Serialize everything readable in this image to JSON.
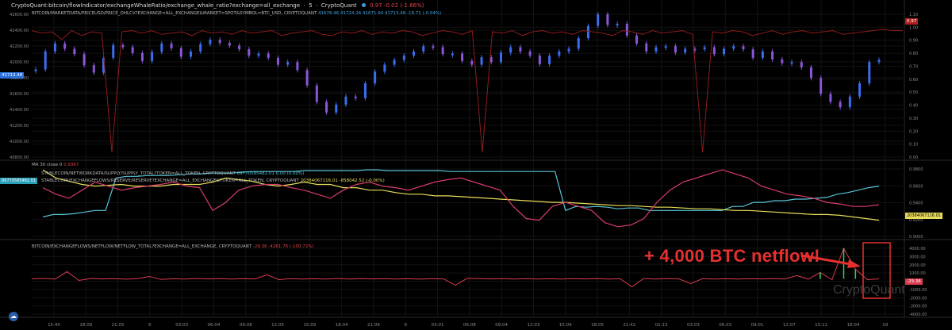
{
  "header": {
    "title": "CryptoQuant:bitcoin/flowIndicator/exchangeWhaleRatio/exchange_whale_ratio?exchange=all_exchange",
    "interval": "5",
    "source": "CryptoQuant",
    "value": "0.97",
    "change": "-0.02 (-1.66%)"
  },
  "panes": {
    "price": {
      "legend": "BITCOIN/MARKETDATA/PRICEUSD/PRICE_OHLCV?EXCHANGE=ALL_EXCHANGE&MARKET=SPOT&SYMBOL=BTC_USD, CRYPTOQUANT",
      "ohlc": "41678.46 41724.26 41671.94 41713.48 -18.71 (-0.04%)",
      "price_tag": "41713.48",
      "ratio_tag": "0.97"
    },
    "stable": {
      "indicator": "MA 30 close 0",
      "indicator_value": "0.9367",
      "legend1": "STABLECOIN/NETWORKDATA/SUPPLY/SUPPLY_TOTAL?TOKEN=ALL_TOKEN, CRYPTOQUANT",
      "legend1_value": "89770585482.01 0.00 (0.00%)",
      "legend2": "STABLECOIN/EXCHANGEFLOWS/RESERVE/RESERVE?EXCHANGE=ALL_EXCHANGE&TOKEN=ALL_TOKEN, CRYPTOQUANT",
      "legend2_value": "20384067116.01 -858042.52 (-0.00%)",
      "supply_tag": "89770585482.01",
      "reserve_tag": "20384067116.01"
    },
    "netflow": {
      "legend": "BITCOIN/EXCHANGEFLOWS/NETFLOW/NETFLOW_TOTAL?EXCHANGE=ALL_EXCHANGE, CRYPTOQUANT",
      "legend_value": "-29.36 -4261.76 (-100.72%)",
      "tag": "-29.36"
    }
  },
  "annotation": "+ 4,000 BTC netflow!",
  "watermark": "CryptoQuant",
  "colors": {
    "background": "#000000",
    "candle_up": "#3b6df0",
    "candle_down": "#8a56d8",
    "whale_ratio": "#8c1c1c",
    "supply_line": "#59c4d6",
    "reserve_line": "#e8dc5a",
    "ma_line": "#d83c6c",
    "netflow_line": "#d83c50",
    "netflow_spike": "#3cd060",
    "annotation": "#e63030"
  },
  "chart_data": [
    {
      "type": "line",
      "pane": "price",
      "series": [
        {
          "name": "BITCOIN/MARKETDATA/PRICEUSD/PRICE_OHLCV?EXCHANGE=ALL_EXCHANGE&MARKET=SPOT&SYMBOL=BTC_USD",
          "style": "candles",
          "values": [
            41560,
            41900,
            42050,
            41950,
            41850,
            41640,
            41500,
            41780,
            42020,
            41980,
            41870,
            41720,
            41890,
            42050,
            41960,
            41800,
            41900,
            42040,
            42120,
            42060,
            42010,
            41940,
            41820,
            41860,
            41780,
            41650,
            41700,
            41550,
            41260,
            40950,
            40750,
            40900,
            41050,
            41020,
            41300,
            41520,
            41650,
            41740,
            41820,
            41900,
            42000,
            41980,
            41850,
            41860,
            41720,
            41650,
            41790,
            41700,
            41880,
            41980,
            41900,
            41820,
            41660,
            41820,
            41900,
            41950,
            42150,
            42380,
            42600,
            42400,
            42420,
            42200,
            42050,
            41900,
            41980,
            42000,
            41880,
            41950,
            41940,
            41980,
            41850,
            41950,
            42000,
            41940,
            41780,
            41900,
            41750,
            41680,
            41700,
            41600,
            41400,
            41100,
            40950,
            40850,
            41050,
            41300,
            41700,
            41740
          ]
        },
        {
          "name": "exchange_whale_ratio",
          "values": [
            0.97,
            0.95,
            0.96,
            0.9,
            0.97,
            0.93,
            0.96,
            0.95,
            0.0,
            0.96,
            0.97,
            0.95,
            0.97,
            0.94,
            0.95,
            0.96,
            0.93,
            0.97,
            0.95,
            0.96,
            0.94,
            0.97,
            0.95,
            0.96,
            0.97,
            0.93,
            0.95,
            0.96,
            0.97,
            0.94,
            0.93,
            0.96,
            0.95,
            0.97,
            0.94,
            0.96,
            0.95,
            0.97,
            0.96,
            0.93,
            0.95,
            0.97,
            0.96,
            0.94,
            0.97,
            0.0,
            0.96,
            0.95,
            0.97,
            0.93,
            0.96,
            0.97,
            0.95,
            0.96,
            0.94,
            0.97,
            0.96,
            0.95,
            0.93,
            0.97,
            0.96,
            0.94,
            0.97,
            0.95,
            0.96,
            0.97,
            0.94,
            0.0,
            0.96,
            0.95,
            0.97,
            0.96,
            0.93,
            0.95,
            0.97,
            0.94,
            0.96,
            0.97,
            0.95,
            0.96,
            0.97,
            0.94,
            0.95,
            0.96,
            0.97,
            0.98,
            0.97,
            0.97
          ]
        }
      ],
      "ylim": [
        40000,
        42600
      ],
      "y2lim": [
        0.0,
        1.1
      ],
      "yticks": [
        "42600.00",
        "42400.00",
        "42200.00",
        "42000.00",
        "41800.00",
        "41600.00",
        "41400.00",
        "41200.00",
        "41000.00",
        "40800.00"
      ],
      "y2ticks": [
        "1.10",
        "1.00",
        "0.90",
        "0.80",
        "0.70",
        "0.60",
        "0.50",
        "0.40",
        "0.30",
        "0.20",
        "0.10",
        "0.00"
      ]
    },
    {
      "type": "line",
      "pane": "stablecoin",
      "series": [
        {
          "name": "STABLECOIN/NETWORKDATA/SUPPLY/SUPPLY_TOTAL?TOKEN=ALL_TOKEN",
          "values": [
            0.922,
            0.925,
            0.925,
            0.926,
            0.928,
            0.93,
            0.93,
            0.97,
            0.972,
            0.972,
            0.973,
            0.973,
            0.973,
            0.974,
            0.975,
            0.975,
            0.976,
            0.976,
            0.976,
            0.977,
            0.978,
            0.978,
            0.978,
            0.978,
            0.978,
            0.979,
            0.979,
            0.979,
            0.979,
            0.979,
            0.979,
            0.98,
            0.98,
            0.979,
            0.979,
            0.979,
            0.979,
            0.979,
            0.979,
            0.978,
            0.978,
            0.978,
            0.978,
            0.978,
            0.978,
            0.978,
            0.978,
            0.978,
            0.978,
            0.978,
            0.93,
            0.935,
            0.934,
            0.935,
            0.934,
            0.932,
            0.933,
            0.933,
            0.93,
            0.93,
            0.93,
            0.93,
            0.93,
            0.93,
            0.93,
            0.93,
            0.935,
            0.935,
            0.94,
            0.94,
            0.942,
            0.942,
            0.944,
            0.944,
            0.945,
            0.946,
            0.95,
            0.952,
            0.955,
            0.958,
            0.96
          ]
        },
        {
          "name": "STABLECOIN/EXCHANGEFLOWS/RESERVE/RESERVE?EXCHANGE=ALL_EXCHANGE&TOKEN=ALL_TOKEN",
          "values": [
            0.98,
            0.97,
            0.966,
            0.962,
            0.96,
            0.961,
            0.962,
            0.96,
            0.96,
            0.96,
            0.962,
            0.962,
            0.962,
            0.965,
            0.97,
            0.968,
            0.966,
            0.962,
            0.96,
            0.962,
            0.965,
            0.962,
            0.962,
            0.958,
            0.958,
            0.955,
            0.955,
            0.952,
            0.95,
            0.95,
            0.948,
            0.948,
            0.947,
            0.946,
            0.945,
            0.944,
            0.943,
            0.942,
            0.941,
            0.94,
            0.94,
            0.939,
            0.938,
            0.937,
            0.936,
            0.936,
            0.935,
            0.934,
            0.934,
            0.933,
            0.932,
            0.932,
            0.931,
            0.93,
            0.93,
            0.929,
            0.928,
            0.927,
            0.926,
            0.925,
            0.925,
            0.924,
            0.922,
            0.92,
            0.918
          ]
        },
        {
          "name": "MA 30 close 0",
          "values": [
            0.958,
            0.95,
            0.945,
            0.955,
            0.965,
            0.96,
            0.955,
            0.958,
            0.96,
            0.962,
            0.965,
            0.96,
            0.958,
            0.93,
            0.94,
            0.955,
            0.96,
            0.962,
            0.962,
            0.958,
            0.955,
            0.95,
            0.945,
            0.955,
            0.962,
            0.965,
            0.96,
            0.958,
            0.955,
            0.96,
            0.965,
            0.968,
            0.97,
            0.965,
            0.96,
            0.955,
            0.935,
            0.92,
            0.918,
            0.935,
            0.94,
            0.935,
            0.93,
            0.915,
            0.91,
            0.912,
            0.92,
            0.94,
            0.955,
            0.965,
            0.97,
            0.975,
            0.98,
            0.975,
            0.97,
            0.96,
            0.955,
            0.95,
            0.948,
            0.945,
            0.94,
            0.938,
            0.935,
            0.935,
            0.937
          ]
        }
      ],
      "yticks": [
        "0.9800",
        "0.9600",
        "0.9400",
        "0.9200",
        "0.9000"
      ]
    },
    {
      "type": "line",
      "pane": "netflow",
      "series": [
        {
          "name": "BITCOIN/EXCHANGEFLOWS/NETFLOW/NETFLOW_TOTAL?EXCHANGE=ALL_EXCHANGE",
          "values": [
            0,
            50,
            -30,
            900,
            -200,
            40,
            -10,
            30,
            -40,
            20,
            300,
            -80,
            10,
            -20,
            40,
            -10,
            20,
            -30,
            15,
            -10,
            500,
            -100,
            30,
            -20,
            10,
            -15,
            40,
            -30,
            20,
            -10,
            15,
            -20,
            10,
            -40,
            30,
            -10,
            -800,
            60,
            20,
            -10,
            15,
            -30,
            25,
            -15,
            10,
            -20,
            30,
            -10,
            20,
            -15,
            10,
            -1000,
            40,
            -20,
            30,
            -10,
            -600,
            20,
            -15,
            10,
            -20,
            30,
            -10,
            15,
            -20,
            400,
            -40,
            800,
            -100,
            3800,
            1200,
            -100,
            0
          ]
        }
      ],
      "ylim": [
        -4000,
        4000
      ],
      "yticks": [
        "4000.00",
        "3000.00",
        "2000.00",
        "1000.00",
        "0.00",
        "-1000.00",
        "-2000.00",
        "-3000.00",
        "-4000.00"
      ]
    }
  ],
  "x_ticks": [
    "15:40",
    "18:09",
    "21:05",
    "6",
    "03:03",
    "06:04",
    "09:08",
    "12:05",
    "15:09",
    "18:04",
    "21:09",
    "6",
    "03:01",
    "06:08",
    "09:04",
    "12:03",
    "15:09",
    "18:05",
    "21:42",
    "01:13",
    "03:03",
    "06:03",
    "09:01",
    "12:07",
    "15:11",
    "18:04",
    "19"
  ]
}
